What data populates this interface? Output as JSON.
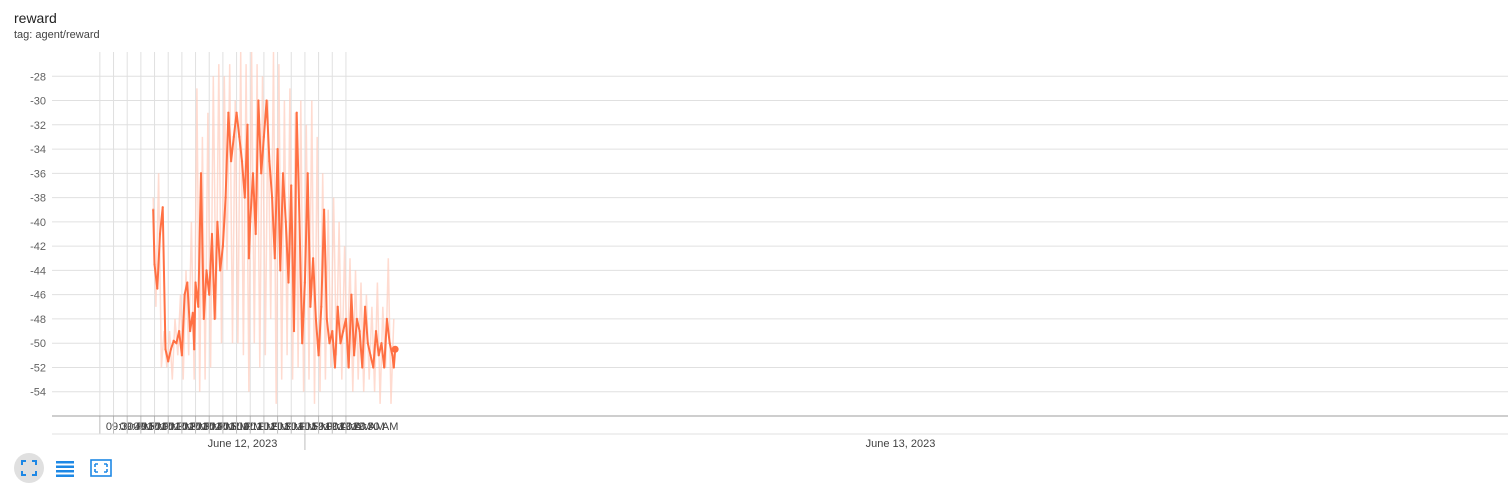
{
  "card": {
    "title": "reward",
    "tag": "tag: agent/reward"
  },
  "colors": {
    "series": "#ff7043",
    "series_raw": "#ffccbc",
    "grid": "#e0e0e0",
    "toolbar_icon": "#1e88e5"
  },
  "toolbar": {
    "icons": [
      "fullscreen-icon",
      "data-table-icon",
      "fit-domain-icon"
    ]
  },
  "chart_data": {
    "type": "line",
    "title": "reward",
    "xlabel": "",
    "ylabel": "",
    "ylim": [
      -56,
      -26
    ],
    "xlim_minutes": [
      -35,
      1030
    ],
    "y_ticks": [
      -28,
      -30,
      -32,
      -34,
      -36,
      -38,
      -40,
      -42,
      -44,
      -46,
      -48,
      -50,
      -52,
      -54
    ],
    "x_tick_labels": [
      "09:30 PM",
      "09:40 PM",
      "09:50 PM",
      "10:00 PM",
      "10:10 PM",
      "10:20 PM",
      "10:30 PM",
      "10:40 PM",
      "10:50 PM",
      "11:00 PM",
      "11:10 PM",
      "11:20 PM",
      "11:30 PM",
      "11:40 PM",
      "11:50 PM",
      "12:00 AM",
      "12:10 AM",
      "12:20 AM",
      "12:30 AM"
    ],
    "date_labels": [
      "June 12, 2023",
      "June 13, 2023"
    ],
    "grid": true,
    "series": [
      {
        "name": "agent/reward",
        "smoothed": true,
        "x_time": [
          "21:39",
          "21:40",
          "21:42",
          "21:44",
          "21:46",
          "21:48",
          "21:50",
          "21:52",
          "21:54",
          "21:56",
          "21:58",
          "22:00",
          "22:02",
          "22:04",
          "22:06",
          "22:08",
          "22:09",
          "22:10",
          "22:12",
          "22:14",
          "22:16",
          "22:18",
          "22:20",
          "22:22",
          "22:24",
          "22:26",
          "22:28",
          "22:30",
          "22:32",
          "22:34",
          "22:36",
          "22:38",
          "22:40",
          "22:42",
          "22:44",
          "22:46",
          "22:48",
          "22:49",
          "22:50",
          "22:52",
          "22:54",
          "22:56",
          "22:58",
          "23:00",
          "23:02",
          "23:04",
          "23:06",
          "23:08",
          "23:10",
          "23:12",
          "23:14",
          "23:16",
          "23:18",
          "23:20",
          "23:22",
          "23:24",
          "23:26",
          "23:28",
          "23:30",
          "23:32",
          "23:34",
          "23:36",
          "23:38",
          "23:40",
          "23:42",
          "23:44",
          "23:46",
          "23:48",
          "23:50",
          "23:52",
          "23:54",
          "23:56",
          "23:58",
          "00:00",
          "00:02",
          "00:04",
          "00:06",
          "00:08",
          "00:10",
          "00:12",
          "00:14",
          "00:16",
          "00:18",
          "00:20",
          "00:22",
          "00:24",
          "00:26",
          "00:28",
          "00:30",
          "00:32",
          "00:34",
          "00:35",
          "00:36"
        ],
        "y": [
          -39,
          -43.5,
          -45.5,
          -41,
          -38.8,
          -50.5,
          -51.5,
          -50.5,
          -49.8,
          -50,
          -49,
          -51,
          -46,
          -45,
          -49,
          -47.5,
          -50.5,
          -45,
          -47,
          -36,
          -48,
          -44,
          -46,
          -41,
          -48,
          -40,
          -44,
          -42,
          -38,
          -31,
          -35,
          -33,
          -31,
          -33,
          -35,
          -38,
          -32,
          -43,
          -40,
          -36,
          -41,
          -30,
          -36,
          -33,
          -30,
          -35,
          -38,
          -43,
          -34,
          -44,
          -36,
          -40,
          -45,
          -37,
          -49,
          -31,
          -40,
          -50,
          -45,
          -36,
          -47,
          -43,
          -48,
          -51,
          -47,
          -39,
          -48,
          -50,
          -49,
          -52,
          -47,
          -50,
          -49,
          -48,
          -52,
          -46,
          -51,
          -48,
          -49,
          -52,
          -47,
          -50,
          -51,
          -52,
          -49,
          -51,
          -50,
          -52,
          -48,
          -50,
          -51,
          -52,
          -50.5
        ]
      },
      {
        "name": "agent/reward (raw)",
        "smoothed": false,
        "x_time": [
          "21:39",
          "21:41",
          "21:43",
          "21:45",
          "21:47",
          "21:49",
          "21:51",
          "21:53",
          "21:55",
          "21:57",
          "21:59",
          "22:01",
          "22:03",
          "22:05",
          "22:07",
          "22:09",
          "22:11",
          "22:13",
          "22:15",
          "22:17",
          "22:19",
          "22:21",
          "22:23",
          "22:25",
          "22:27",
          "22:29",
          "22:31",
          "22:33",
          "22:35",
          "22:37",
          "22:39",
          "22:41",
          "22:43",
          "22:45",
          "22:47",
          "22:49",
          "22:51",
          "22:53",
          "22:55",
          "22:57",
          "22:59",
          "23:01",
          "23:03",
          "23:05",
          "23:07",
          "23:09",
          "23:11",
          "23:13",
          "23:15",
          "23:17",
          "23:19",
          "23:21",
          "23:23",
          "23:25",
          "23:27",
          "23:29",
          "23:31",
          "23:33",
          "23:35",
          "23:37",
          "23:39",
          "23:41",
          "23:43",
          "23:45",
          "23:47",
          "23:49",
          "23:51",
          "23:53",
          "23:55",
          "23:57",
          "23:59",
          "00:01",
          "00:03",
          "00:05",
          "00:07",
          "00:09",
          "00:11",
          "00:13",
          "00:15",
          "00:17",
          "00:19",
          "00:21",
          "00:23",
          "00:25",
          "00:27",
          "00:29",
          "00:31",
          "00:33",
          "00:35"
        ],
        "y": [
          -38,
          -47,
          -36,
          -52,
          -49,
          -52,
          -49,
          -53,
          -48,
          -51,
          -46,
          -53,
          -44,
          -51,
          -40,
          -53,
          -29,
          -54,
          -33,
          -53,
          -31,
          -52,
          -28,
          -48,
          -27,
          -50,
          -28,
          -44,
          -27,
          -50,
          -30,
          -50,
          -26,
          -51,
          -27,
          -54,
          -26,
          -50,
          -27,
          -52,
          -28,
          -51,
          -30,
          -48,
          -26,
          -55,
          -27,
          -53,
          -30,
          -51,
          -29,
          -53,
          -31,
          -52,
          -30,
          -54,
          -32,
          -53,
          -30,
          -55,
          -33,
          -54,
          -36,
          -53,
          -39,
          -52,
          -38,
          -51,
          -40,
          -53,
          -42,
          -52,
          -43,
          -54,
          -44,
          -53,
          -45,
          -54,
          -46,
          -53,
          -47,
          -54,
          -45,
          -55,
          -47,
          -52,
          -43,
          -55,
          -48
        ]
      }
    ]
  }
}
